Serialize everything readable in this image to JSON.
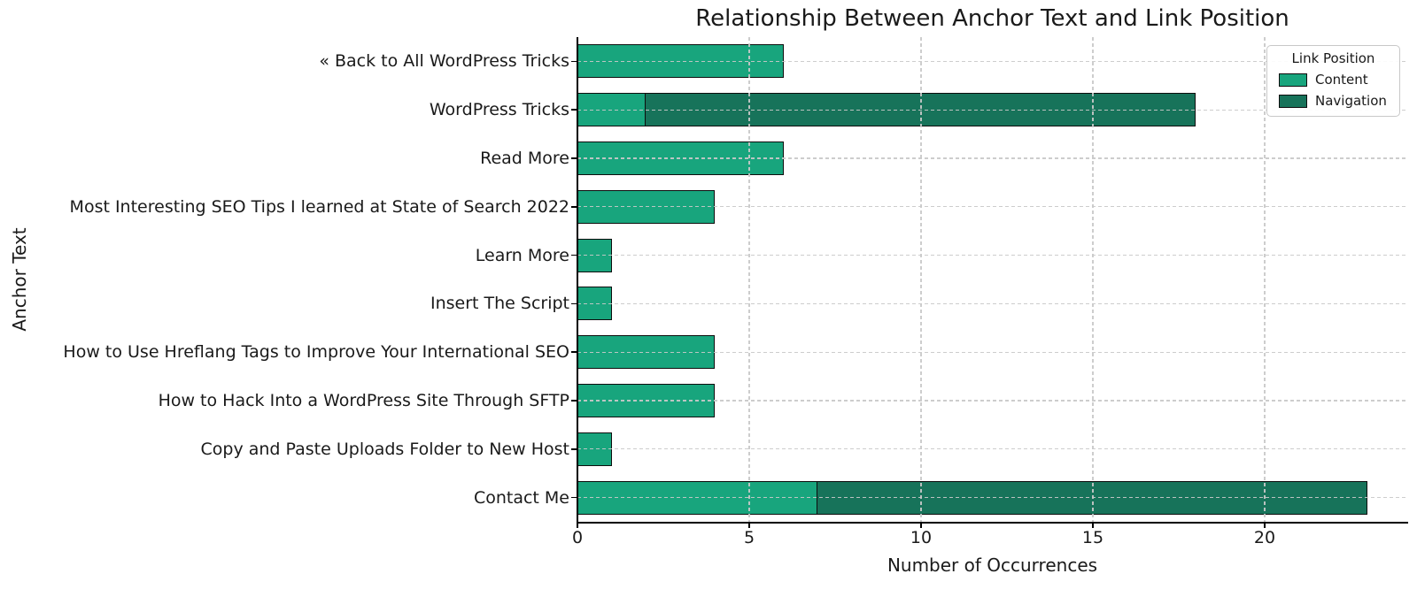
{
  "chart_data": {
    "type": "bar",
    "orientation": "horizontal",
    "stacked": true,
    "title": "Relationship Between Anchor Text and Link Position",
    "xlabel": "Number of Occurrences",
    "ylabel": "Anchor Text",
    "categories": [
      "« Back to All WordPress Tricks",
      "WordPress Tricks",
      "Read More",
      "Most Interesting SEO Tips I learned at State of Search 2022",
      "Learn More",
      "Insert The Script",
      "How to Use Hreflang Tags to Improve Your International SEO",
      "How to Hack Into a WordPress Site Through SFTP",
      "Copy and Paste Uploads Folder to New Host",
      "Contact Me"
    ],
    "series": [
      {
        "name": "Content",
        "color": "#18a57d",
        "values": [
          6,
          2,
          6,
          4,
          1,
          1,
          4,
          4,
          1,
          7
        ]
      },
      {
        "name": "Navigation",
        "color": "#17735a",
        "values": [
          0,
          16,
          0,
          0,
          0,
          0,
          0,
          0,
          0,
          16
        ]
      }
    ],
    "xticks": [
      0,
      5,
      10,
      15,
      20
    ],
    "xlim": [
      0,
      24.15
    ],
    "grid": true,
    "grid_style": "dashed",
    "bar_edge_color": "#0d0d0d",
    "legend": {
      "title": "Link Position",
      "position": "upper-right"
    }
  }
}
